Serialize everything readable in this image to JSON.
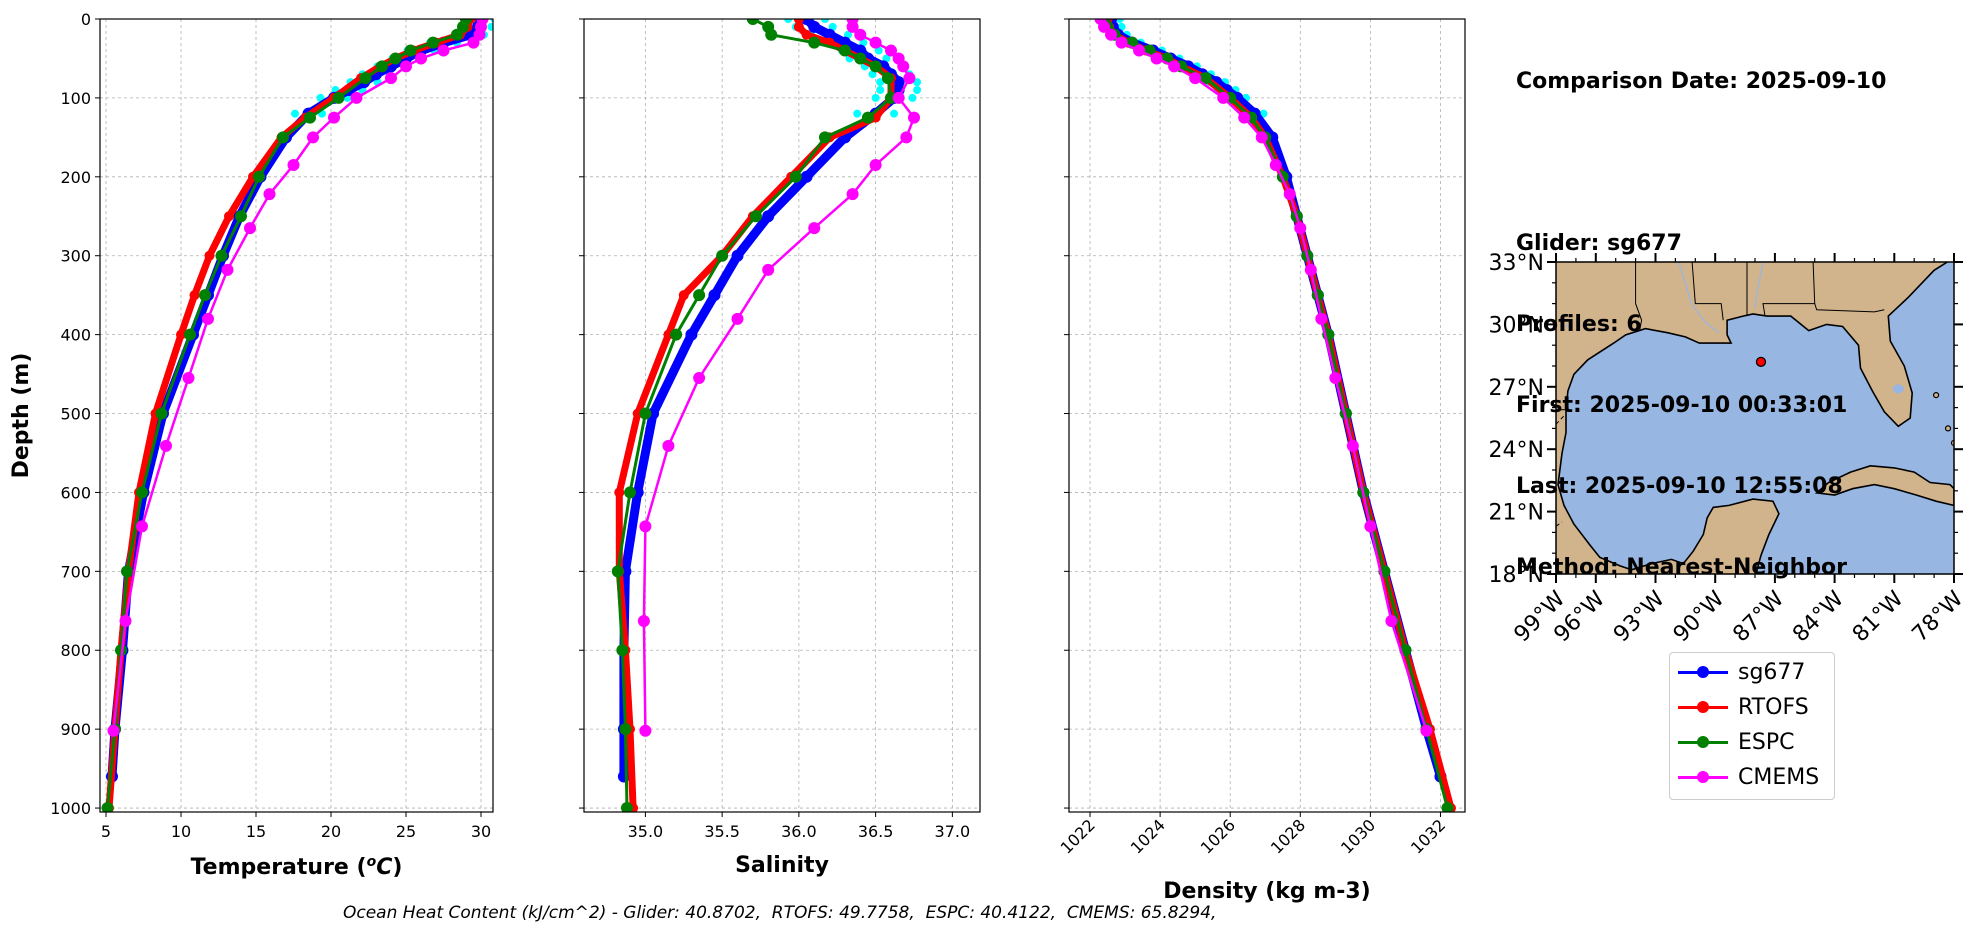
{
  "info": {
    "comparison_date": "Comparison Date: 2025-09-10",
    "glider": "Glider: sg677",
    "profiles": "Profiles: 6",
    "first": "First: 2025-09-10 00:33:01",
    "last": "Last: 2025-09-10 12:55:08",
    "method": "Method: Nearest-Neighbor"
  },
  "footer": "Ocean Heat Content (kJ/cm^2) - Glider: 40.8702,  RTOFS: 49.7758,  ESPC: 40.4122,  CMEMS: 65.8294,",
  "colors": {
    "sg677": "#0000ff",
    "RTOFS": "#ff0000",
    "ESPC": "#008000",
    "CMEMS": "#ff00ff",
    "glider_raw": "#00ffff",
    "land": "#d2b48c",
    "ocean": "#97b6e1"
  },
  "legend": [
    {
      "name": "sg677",
      "color": "#0000ff"
    },
    {
      "name": "RTOFS",
      "color": "#ff0000"
    },
    {
      "name": "ESPC",
      "color": "#008000"
    },
    {
      "name": "CMEMS",
      "color": "#ff00ff"
    }
  ],
  "chart_data": [
    {
      "type": "line",
      "xlabel": "Temperature (°C)",
      "ylabel": "Depth (m)",
      "xlim": [
        4.6,
        30.8
      ],
      "ylim": [
        1005,
        0
      ],
      "xticks": [
        5,
        10,
        15,
        20,
        25,
        30
      ],
      "yticks": [
        0,
        100,
        200,
        300,
        400,
        500,
        600,
        700,
        800,
        900,
        1000
      ],
      "grid": true,
      "series": [
        {
          "name": "sg677",
          "depth": [
            0,
            10,
            20,
            30,
            40,
            50,
            60,
            70,
            80,
            90,
            100,
            120,
            150,
            200,
            250,
            300,
            350,
            400,
            500,
            600,
            700,
            800,
            900,
            960
          ],
          "values": [
            30,
            29.8,
            29.3,
            27.5,
            26,
            25,
            24,
            23,
            22.2,
            21.2,
            20.2,
            18.5,
            17,
            15.3,
            13.9,
            12.8,
            11.8,
            10.8,
            8.8,
            7.5,
            6.5,
            6.1,
            5.6,
            5.4
          ]
        },
        {
          "name": "RTOFS",
          "depth": [
            0,
            10,
            20,
            30,
            40,
            50,
            60,
            75,
            100,
            125,
            150,
            200,
            250,
            300,
            350,
            400,
            500,
            600,
            700,
            800,
            900,
            1000
          ],
          "values": [
            29.3,
            29.1,
            28.6,
            27,
            25.5,
            24.3,
            23.3,
            22,
            20.2,
            18.3,
            16.7,
            14.8,
            13.2,
            11.9,
            10.9,
            10,
            8.3,
            7.2,
            6.5,
            6.0,
            5.6,
            5.2
          ]
        },
        {
          "name": "ESPC",
          "depth": [
            0,
            10,
            20,
            30,
            40,
            50,
            60,
            75,
            100,
            125,
            150,
            200,
            250,
            300,
            350,
            400,
            500,
            600,
            700,
            800,
            900,
            1000
          ],
          "values": [
            29,
            28.8,
            28.4,
            26.8,
            25.3,
            24.3,
            23.4,
            22.3,
            20.5,
            18.6,
            16.8,
            15.2,
            14,
            12.7,
            11.6,
            10.6,
            8.7,
            7.4,
            6.4,
            6.0,
            5.6,
            5.1
          ]
        },
        {
          "name": "CMEMS",
          "depth": [
            0,
            10,
            20,
            30,
            40,
            50,
            60,
            75,
            100,
            125,
            150,
            185,
            222,
            265,
            318,
            380,
            455,
            541,
            643,
            763,
            902
          ],
          "values": [
            30.1,
            30,
            29.9,
            29.5,
            27.5,
            26,
            25,
            24,
            21.7,
            20.2,
            18.8,
            17.5,
            15.9,
            14.6,
            13.1,
            11.8,
            10.5,
            9,
            7.4,
            6.3,
            5.5
          ]
        }
      ]
    },
    {
      "type": "line",
      "xlabel": "Salinity",
      "xlim": [
        34.6,
        37.18
      ],
      "ylim": [
        1005,
        0
      ],
      "xticks": [
        35.0,
        35.5,
        36.0,
        36.5,
        37.0
      ],
      "grid": true,
      "series": [
        {
          "name": "sg677",
          "depth": [
            0,
            10,
            20,
            30,
            40,
            50,
            60,
            70,
            80,
            90,
            100,
            120,
            150,
            200,
            250,
            300,
            350,
            400,
            500,
            600,
            700,
            800,
            900,
            960
          ],
          "values": [
            36.05,
            36.1,
            36.2,
            36.3,
            36.4,
            36.45,
            36.55,
            36.6,
            36.65,
            36.65,
            36.62,
            36.5,
            36.3,
            36.05,
            35.8,
            35.6,
            35.45,
            35.3,
            35.05,
            34.95,
            34.87,
            34.86,
            34.86,
            34.86
          ]
        },
        {
          "name": "RTOFS",
          "depth": [
            0,
            10,
            20,
            30,
            40,
            50,
            60,
            75,
            100,
            125,
            150,
            200,
            250,
            300,
            350,
            400,
            500,
            600,
            700,
            800,
            900,
            1000
          ],
          "values": [
            36.0,
            36.0,
            36.05,
            36.2,
            36.3,
            36.4,
            36.5,
            36.6,
            36.6,
            36.5,
            36.2,
            35.95,
            35.7,
            35.5,
            35.25,
            35.15,
            34.95,
            34.83,
            34.83,
            34.87,
            34.9,
            34.92
          ]
        },
        {
          "name": "ESPC",
          "depth": [
            0,
            10,
            20,
            30,
            40,
            50,
            60,
            75,
            100,
            125,
            150,
            200,
            250,
            300,
            350,
            400,
            500,
            600,
            700,
            800,
            900,
            1000
          ],
          "values": [
            35.7,
            35.8,
            35.82,
            36.1,
            36.3,
            36.4,
            36.5,
            36.58,
            36.6,
            36.45,
            36.17,
            35.98,
            35.72,
            35.5,
            35.35,
            35.2,
            35.0,
            34.9,
            34.82,
            34.85,
            34.87,
            34.88
          ]
        },
        {
          "name": "CMEMS",
          "depth": [
            0,
            10,
            20,
            30,
            40,
            50,
            60,
            75,
            100,
            125,
            150,
            185,
            222,
            265,
            318,
            380,
            455,
            541,
            643,
            763,
            902
          ],
          "values": [
            36.35,
            36.35,
            36.4,
            36.5,
            36.6,
            36.65,
            36.68,
            36.72,
            36.65,
            36.75,
            36.7,
            36.5,
            36.35,
            36.1,
            35.8,
            35.6,
            35.35,
            35.15,
            35.0,
            34.99,
            35.0
          ]
        }
      ]
    },
    {
      "type": "line",
      "xlabel": "Density (kg m-3)",
      "xlim": [
        1021.4,
        1032.7
      ],
      "ylim": [
        1005,
        0
      ],
      "xticks": [
        1022,
        1024,
        1026,
        1028,
        1030,
        1032
      ],
      "grid": true,
      "series": [
        {
          "name": "sg677",
          "depth": [
            0,
            10,
            20,
            30,
            40,
            50,
            60,
            70,
            80,
            90,
            100,
            120,
            150,
            200,
            250,
            300,
            350,
            400,
            500,
            600,
            700,
            800,
            900,
            960
          ],
          "values": [
            1022.6,
            1022.65,
            1022.8,
            1023.2,
            1023.8,
            1024.3,
            1024.8,
            1025.2,
            1025.6,
            1025.9,
            1026.2,
            1026.7,
            1027.2,
            1027.6,
            1027.9,
            1028.2,
            1028.5,
            1028.8,
            1029.3,
            1029.8,
            1030.4,
            1031.0,
            1031.6,
            1032.0
          ]
        },
        {
          "name": "RTOFS",
          "depth": [
            0,
            10,
            20,
            30,
            40,
            50,
            60,
            75,
            100,
            125,
            150,
            200,
            250,
            300,
            350,
            400,
            500,
            600,
            700,
            800,
            900,
            1000
          ],
          "values": [
            1022.5,
            1022.55,
            1022.7,
            1023.1,
            1023.6,
            1024.2,
            1024.6,
            1025.3,
            1026.0,
            1026.6,
            1027.0,
            1027.5,
            1027.9,
            1028.2,
            1028.5,
            1028.8,
            1029.3,
            1029.8,
            1030.4,
            1031.0,
            1031.7,
            1032.3
          ]
        },
        {
          "name": "ESPC",
          "depth": [
            0,
            10,
            20,
            30,
            40,
            50,
            60,
            75,
            100,
            125,
            150,
            200,
            250,
            300,
            350,
            400,
            500,
            600,
            700,
            800,
            900,
            1000
          ],
          "values": [
            1022.4,
            1022.5,
            1022.7,
            1023.2,
            1023.7,
            1024.2,
            1024.6,
            1025.3,
            1026.0,
            1026.6,
            1027.0,
            1027.5,
            1027.9,
            1028.2,
            1028.5,
            1028.8,
            1029.3,
            1029.8,
            1030.4,
            1031.0,
            1031.6,
            1032.2
          ]
        },
        {
          "name": "CMEMS",
          "depth": [
            0,
            10,
            20,
            30,
            40,
            50,
            60,
            75,
            100,
            125,
            150,
            185,
            222,
            265,
            318,
            380,
            455,
            541,
            643,
            763,
            902
          ],
          "values": [
            1022.3,
            1022.4,
            1022.6,
            1022.9,
            1023.4,
            1023.9,
            1024.4,
            1025.0,
            1025.8,
            1026.4,
            1026.9,
            1027.3,
            1027.7,
            1028.0,
            1028.3,
            1028.6,
            1029.0,
            1029.5,
            1030.0,
            1030.6,
            1031.6
          ]
        }
      ]
    },
    {
      "type": "map",
      "lon_ticks": [
        "99°W",
        "96°W",
        "93°W",
        "90°W",
        "87°W",
        "84°W",
        "81°W",
        "78°W"
      ],
      "lat_ticks": [
        "33°N",
        "30°N",
        "27°N",
        "24°N",
        "21°N",
        "18°N"
      ],
      "lon_range": [
        -98,
        -78
      ],
      "lat_range": [
        18,
        33
      ],
      "glider_position": {
        "lon": -87.7,
        "lat": 28.2
      }
    }
  ]
}
